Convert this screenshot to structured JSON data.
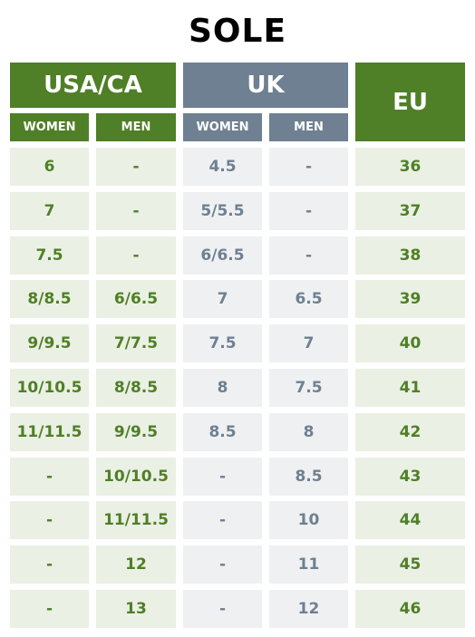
{
  "title": "SOLE",
  "headers": {
    "usa_ca": "USA/CA",
    "uk": "UK",
    "eu": "EU",
    "usa_women": "WOMEN",
    "usa_men": "MEN",
    "uk_women": "WOMEN",
    "uk_men": "MEN"
  },
  "rows": [
    {
      "usa_women": "6",
      "usa_men": "-",
      "uk_women": "4.5",
      "uk_men": "-",
      "eu": "36"
    },
    {
      "usa_women": "7",
      "usa_men": "-",
      "uk_women": "5/5.5",
      "uk_men": "-",
      "eu": "37"
    },
    {
      "usa_women": "7.5",
      "usa_men": "-",
      "uk_women": "6/6.5",
      "uk_men": "-",
      "eu": "38"
    },
    {
      "usa_women": "8/8.5",
      "usa_men": "6/6.5",
      "uk_women": "7",
      "uk_men": "6.5",
      "eu": "39"
    },
    {
      "usa_women": "9/9.5",
      "usa_men": "7/7.5",
      "uk_women": "7.5",
      "uk_men": "7",
      "eu": "40"
    },
    {
      "usa_women": "10/10.5",
      "usa_men": "8/8.5",
      "uk_women": "8",
      "uk_men": "7.5",
      "eu": "41"
    },
    {
      "usa_women": "11/11.5",
      "usa_men": "9/9.5",
      "uk_women": "8.5",
      "uk_men": "8",
      "eu": "42"
    },
    {
      "usa_women": "-",
      "usa_men": "10/10.5",
      "uk_women": "-",
      "uk_men": "8.5",
      "eu": "43"
    },
    {
      "usa_women": "-",
      "usa_men": "11/11.5",
      "uk_women": "-",
      "uk_men": "10",
      "eu": "44"
    },
    {
      "usa_women": "-",
      "usa_men": "12",
      "uk_women": "-",
      "uk_men": "11",
      "eu": "45"
    },
    {
      "usa_women": "-",
      "usa_men": "13",
      "uk_women": "-",
      "uk_men": "12",
      "eu": "46"
    }
  ],
  "colors": {
    "green": "#4f7f26",
    "slate": "#6e8091",
    "green_bg": "#eaf0e4",
    "slate_bg": "#eff0f2"
  }
}
